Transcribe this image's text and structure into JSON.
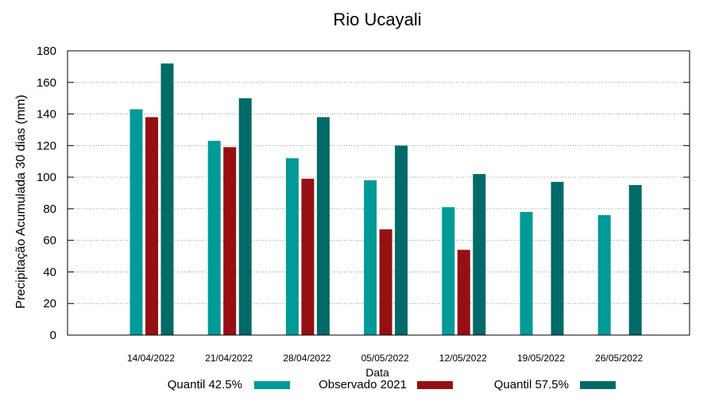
{
  "chart_data": {
    "type": "bar",
    "title": "Rio Ucayali",
    "xlabel": "Data",
    "ylabel": "Precipitação Acumulada 30 dias (mm)",
    "ylim": [
      0,
      180
    ],
    "yticks": [
      0,
      20,
      40,
      60,
      80,
      100,
      120,
      140,
      160,
      180
    ],
    "grid": true,
    "legend_position": "bottom",
    "categories": [
      "14/04/2022",
      "21/04/2022",
      "28/04/2022",
      "05/05/2022",
      "12/05/2022",
      "19/05/2022",
      "26/05/2022"
    ],
    "series": [
      {
        "name": "Quantil 42.5%",
        "color": "#009a98",
        "values": [
          143,
          123,
          112,
          98,
          81,
          78,
          76
        ]
      },
      {
        "name": "Observado 2021",
        "color": "#960f12",
        "values": [
          138,
          119,
          99,
          67,
          54,
          null,
          null
        ]
      },
      {
        "name": "Quantil 57.5%",
        "color": "#006a69",
        "values": [
          172,
          150,
          138,
          120,
          102,
          97,
          95
        ]
      }
    ]
  }
}
